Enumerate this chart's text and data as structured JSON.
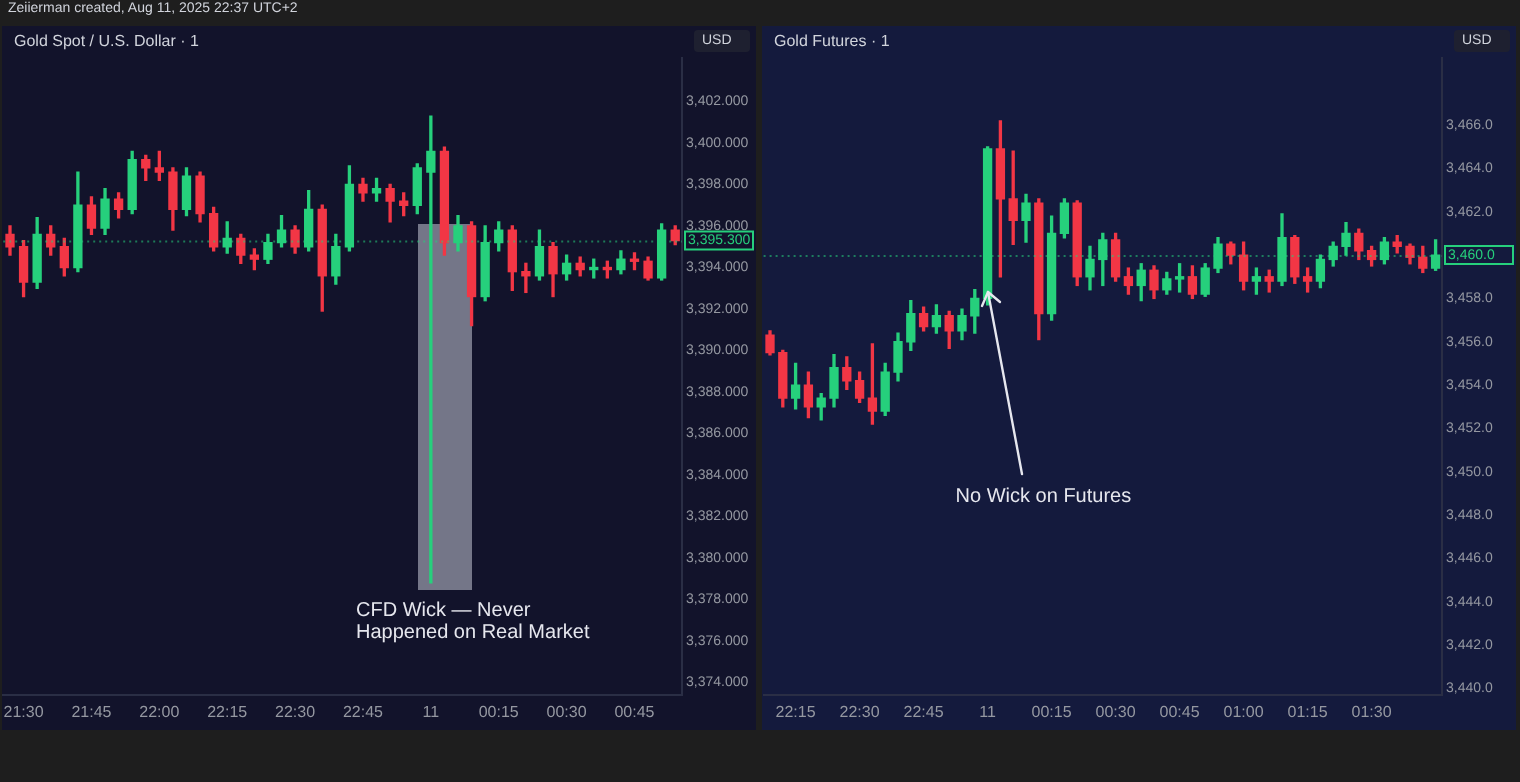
{
  "chart_data": [
    {
      "type": "candlestick",
      "title": "Gold Spot / U.S. Dollar · 1",
      "ylabel": "USD",
      "categories": [
        null,
        "21:30",
        null,
        null,
        null,
        null,
        "21:45",
        null,
        null,
        null,
        null,
        "22:00",
        null,
        null,
        null,
        null,
        "22:15",
        null,
        null,
        null,
        null,
        "22:30",
        null,
        null,
        null,
        null,
        "22:45",
        null,
        null,
        null,
        null,
        "11",
        null,
        null,
        null,
        null,
        "00:15",
        null,
        null,
        null,
        null,
        "00:30",
        null,
        null,
        null,
        null,
        "00:45",
        null,
        null,
        null
      ],
      "ohlc": [
        [
          3395.6,
          3396.0,
          3394.6,
          3395.0
        ],
        [
          3395.0,
          3395.3,
          3392.6,
          3393.3
        ],
        [
          3393.3,
          3396.4,
          3393.0,
          3395.6
        ],
        [
          3395.6,
          3396.0,
          3394.6,
          3395.0
        ],
        [
          3395.0,
          3395.4,
          3393.6,
          3394.0
        ],
        [
          3394.0,
          3398.6,
          3393.8,
          3397.0
        ],
        [
          3397.0,
          3397.4,
          3395.6,
          3395.9
        ],
        [
          3395.9,
          3397.8,
          3395.6,
          3397.3
        ],
        [
          3397.3,
          3397.6,
          3396.4,
          3396.8
        ],
        [
          3396.8,
          3399.6,
          3396.6,
          3399.2
        ],
        [
          3399.2,
          3399.4,
          3398.2,
          3398.8
        ],
        [
          3398.8,
          3399.6,
          3398.2,
          3398.6
        ],
        [
          3398.6,
          3398.8,
          3395.8,
          3396.8
        ],
        [
          3396.8,
          3398.8,
          3396.5,
          3398.4
        ],
        [
          3398.4,
          3398.6,
          3396.2,
          3396.6
        ],
        [
          3396.6,
          3396.9,
          3394.8,
          3395.0
        ],
        [
          3395.0,
          3396.2,
          3394.7,
          3395.4
        ],
        [
          3395.4,
          3395.6,
          3394.2,
          3394.6
        ],
        [
          3394.6,
          3394.9,
          3393.9,
          3394.4
        ],
        [
          3394.4,
          3395.6,
          3394.2,
          3395.2
        ],
        [
          3395.2,
          3396.5,
          3395.0,
          3395.8
        ],
        [
          3395.8,
          3396.0,
          3394.7,
          3395.0
        ],
        [
          3395.0,
          3397.7,
          3394.8,
          3396.8
        ],
        [
          3396.8,
          3397.0,
          3391.9,
          3393.6
        ],
        [
          3393.6,
          3395.6,
          3393.2,
          3395.0
        ],
        [
          3395.0,
          3398.9,
          3394.8,
          3398.0
        ],
        [
          3398.0,
          3398.3,
          3397.2,
          3397.6
        ],
        [
          3397.6,
          3398.3,
          3397.2,
          3397.8
        ],
        [
          3397.8,
          3398.0,
          3396.2,
          3397.2
        ],
        [
          3397.2,
          3397.6,
          3396.5,
          3397.0
        ],
        [
          3397.0,
          3399.0,
          3396.6,
          3398.8
        ],
        [
          3398.6,
          3401.3,
          3378.8,
          3399.6
        ],
        [
          3399.6,
          3399.8,
          3394.6,
          3395.2
        ],
        [
          3395.2,
          3396.5,
          3394.8,
          3396.0
        ],
        [
          3396.0,
          3396.2,
          3391.2,
          3392.6
        ],
        [
          3392.6,
          3396.0,
          3392.4,
          3395.2
        ],
        [
          3395.2,
          3396.2,
          3394.8,
          3395.8
        ],
        [
          3395.8,
          3396.0,
          3392.9,
          3393.8
        ],
        [
          3393.8,
          3394.2,
          3392.8,
          3393.6
        ],
        [
          3393.6,
          3395.8,
          3393.4,
          3395.0
        ],
        [
          3395.0,
          3395.2,
          3392.6,
          3393.7
        ],
        [
          3393.7,
          3394.6,
          3393.4,
          3394.2
        ],
        [
          3394.2,
          3394.5,
          3393.6,
          3393.9
        ],
        [
          3393.9,
          3394.4,
          3393.5,
          3394.0
        ],
        [
          3394.0,
          3394.3,
          3393.5,
          3393.9
        ],
        [
          3393.9,
          3394.8,
          3393.7,
          3394.4
        ],
        [
          3394.4,
          3394.7,
          3393.9,
          3394.3
        ],
        [
          3394.3,
          3394.5,
          3393.4,
          3393.5
        ],
        [
          3393.5,
          3396.1,
          3393.4,
          3395.8
        ],
        [
          3395.8,
          3396.0,
          3395.1,
          3395.3
        ]
      ],
      "colors": [
        "#f23645",
        "#f23645",
        "#26d07c",
        "#f23645",
        "#f23645",
        "#26d07c",
        "#f23645",
        "#26d07c",
        "#f23645",
        "#26d07c",
        "#f23645",
        "#f23645",
        "#f23645",
        "#26d07c",
        "#f23645",
        "#f23645",
        "#26d07c",
        "#f23645",
        "#f23645",
        "#26d07c",
        "#26d07c",
        "#f23645",
        "#26d07c",
        "#f23645",
        "#26d07c",
        "#26d07c",
        "#f23645",
        "#26d07c",
        "#f23645",
        "#f23645",
        "#26d07c",
        "#26d07c",
        "#f23645",
        "#26d07c",
        "#f23645",
        "#26d07c",
        "#26d07c",
        "#f23645",
        "#f23645",
        "#26d07c",
        "#f23645",
        "#26d07c",
        "#f23645",
        "#26d07c",
        "#f23645",
        "#26d07c",
        "#f23645",
        "#f23645",
        "#26d07c",
        "#f23645"
      ],
      "ylim": [
        3373.4,
        3404.1
      ],
      "yticks": [
        {
          "value": 3374,
          "label": "3,374.000"
        },
        {
          "value": 3376,
          "label": "3,376.000"
        },
        {
          "value": 3378,
          "label": "3,378.000"
        },
        {
          "value": 3380,
          "label": "3,380.000"
        },
        {
          "value": 3382,
          "label": "3,382.000"
        },
        {
          "value": 3384,
          "label": "3,384.000"
        },
        {
          "value": 3386,
          "label": "3,386.000"
        },
        {
          "value": 3388,
          "label": "3,388.000"
        },
        {
          "value": 3390,
          "label": "3,390.000"
        },
        {
          "value": 3392,
          "label": "3,392.000"
        },
        {
          "value": 3394,
          "label": "3,394.000"
        },
        {
          "value": 3396,
          "label": "3,396.000"
        },
        {
          "value": 3398,
          "label": "3,398.000"
        },
        {
          "value": 3400,
          "label": "3,400.000"
        },
        {
          "value": 3402,
          "label": "3,402.000"
        }
      ],
      "ref_lines": [
        {
          "axis": "y",
          "value": 3395.3,
          "label": "3,395.300",
          "color": "#26d07c"
        }
      ],
      "annotations": [
        "Zeiierman created, Aug 11, 2025 22:37 UTC+2",
        "CFD Wick — Never\nHappened on Real Market"
      ]
    },
    {
      "type": "candlestick",
      "title": "Gold Futures · 1",
      "ylabel": "USD",
      "categories": [
        null,
        null,
        "22:15",
        null,
        null,
        null,
        null,
        "22:30",
        null,
        null,
        null,
        null,
        "22:45",
        null,
        null,
        null,
        null,
        "11",
        null,
        null,
        null,
        null,
        "00:15",
        null,
        null,
        null,
        null,
        "00:30",
        null,
        null,
        null,
        null,
        "00:45",
        null,
        null,
        null,
        null,
        "01:00",
        null,
        null,
        null,
        null,
        "01:15",
        null,
        null,
        null,
        null,
        "01:30",
        null,
        null,
        null,
        null,
        null
      ],
      "ohlc": [
        [
          3456.3,
          3456.5,
          3455.4,
          3455.5
        ],
        [
          3455.5,
          3455.6,
          3453.0,
          3453.4
        ],
        [
          3453.4,
          3455.0,
          3452.9,
          3454.0
        ],
        [
          3454.0,
          3454.6,
          3452.5,
          3453.0
        ],
        [
          3453.0,
          3453.6,
          3452.4,
          3453.4
        ],
        [
          3453.4,
          3455.4,
          3453.0,
          3454.8
        ],
        [
          3454.8,
          3455.3,
          3453.8,
          3454.2
        ],
        [
          3454.2,
          3454.6,
          3453.2,
          3453.4
        ],
        [
          3453.4,
          3455.9,
          3452.2,
          3452.8
        ],
        [
          3452.8,
          3455.0,
          3452.6,
          3454.6
        ],
        [
          3454.6,
          3456.4,
          3454.2,
          3456.0
        ],
        [
          3456.0,
          3457.9,
          3455.6,
          3457.3
        ],
        [
          3457.3,
          3457.6,
          3456.5,
          3456.7
        ],
        [
          3456.7,
          3457.7,
          3456.4,
          3457.2
        ],
        [
          3457.2,
          3457.4,
          3455.7,
          3456.5
        ],
        [
          3456.5,
          3457.5,
          3456.1,
          3457.2
        ],
        [
          3457.2,
          3458.4,
          3456.4,
          3458.0
        ],
        [
          3458.0,
          3465.0,
          3457.7,
          3464.9
        ],
        [
          3464.9,
          3466.2,
          3459.0,
          3462.6
        ],
        [
          3462.6,
          3464.8,
          3460.5,
          3461.6
        ],
        [
          3461.6,
          3462.8,
          3460.6,
          3462.4
        ],
        [
          3462.4,
          3462.6,
          3456.1,
          3457.3
        ],
        [
          3457.3,
          3461.8,
          3457.0,
          3461.0
        ],
        [
          3461.0,
          3462.6,
          3460.8,
          3462.4
        ],
        [
          3462.4,
          3462.5,
          3458.6,
          3459.0
        ],
        [
          3459.0,
          3460.4,
          3458.4,
          3459.8
        ],
        [
          3459.8,
          3461.0,
          3458.6,
          3460.7
        ],
        [
          3460.7,
          3461.0,
          3458.8,
          3459.0
        ],
        [
          3459.0,
          3459.4,
          3458.2,
          3458.6
        ],
        [
          3458.6,
          3459.6,
          3457.9,
          3459.3
        ],
        [
          3459.3,
          3459.5,
          3458.0,
          3458.4
        ],
        [
          3458.4,
          3459.2,
          3458.2,
          3458.9
        ],
        [
          3458.9,
          3459.6,
          3458.3,
          3459.0
        ],
        [
          3459.0,
          3459.5,
          3458.0,
          3458.2
        ],
        [
          3458.2,
          3459.6,
          3458.1,
          3459.4
        ],
        [
          3459.4,
          3460.8,
          3459.2,
          3460.5
        ],
        [
          3460.5,
          3460.6,
          3459.6,
          3460.0
        ],
        [
          3460.0,
          3460.6,
          3458.4,
          3458.8
        ],
        [
          3458.8,
          3459.4,
          3458.2,
          3459.0
        ],
        [
          3459.0,
          3459.3,
          3458.3,
          3458.8
        ],
        [
          3458.8,
          3461.9,
          3458.6,
          3460.8
        ],
        [
          3460.8,
          3460.9,
          3458.7,
          3459.0
        ],
        [
          3459.0,
          3459.4,
          3458.3,
          3458.8
        ],
        [
          3458.8,
          3460.0,
          3458.5,
          3459.8
        ],
        [
          3459.8,
          3460.6,
          3459.5,
          3460.4
        ],
        [
          3460.4,
          3461.5,
          3460.0,
          3461.0
        ],
        [
          3461.0,
          3461.2,
          3459.8,
          3460.2
        ],
        [
          3460.2,
          3460.4,
          3459.5,
          3459.8
        ],
        [
          3459.8,
          3460.8,
          3459.6,
          3460.6
        ],
        [
          3460.6,
          3460.9,
          3460.1,
          3460.4
        ],
        [
          3460.4,
          3460.5,
          3459.6,
          3459.9
        ],
        [
          3459.9,
          3460.4,
          3459.2,
          3459.4
        ],
        [
          3459.4,
          3460.7,
          3459.3,
          3460.0
        ]
      ],
      "colors": [
        "#f23645",
        "#f23645",
        "#26d07c",
        "#f23645",
        "#26d07c",
        "#26d07c",
        "#f23645",
        "#f23645",
        "#f23645",
        "#26d07c",
        "#26d07c",
        "#26d07c",
        "#f23645",
        "#26d07c",
        "#f23645",
        "#26d07c",
        "#26d07c",
        "#26d07c",
        "#f23645",
        "#f23645",
        "#26d07c",
        "#f23645",
        "#26d07c",
        "#26d07c",
        "#f23645",
        "#26d07c",
        "#26d07c",
        "#f23645",
        "#f23645",
        "#26d07c",
        "#f23645",
        "#26d07c",
        "#26d07c",
        "#f23645",
        "#26d07c",
        "#26d07c",
        "#f23645",
        "#f23645",
        "#26d07c",
        "#f23645",
        "#26d07c",
        "#f23645",
        "#f23645",
        "#26d07c",
        "#26d07c",
        "#26d07c",
        "#f23645",
        "#f23645",
        "#26d07c",
        "#f23645",
        "#f23645",
        "#f23645",
        "#26d07c"
      ],
      "ylim": [
        3439.7,
        3469.1
      ],
      "yticks": [
        {
          "value": 3440,
          "label": "3,440.0"
        },
        {
          "value": 3442,
          "label": "3,442.0"
        },
        {
          "value": 3444,
          "label": "3,444.0"
        },
        {
          "value": 3446,
          "label": "3,446.0"
        },
        {
          "value": 3448,
          "label": "3,448.0"
        },
        {
          "value": 3450,
          "label": "3,450.0"
        },
        {
          "value": 3452,
          "label": "3,452.0"
        },
        {
          "value": 3454,
          "label": "3,454.0"
        },
        {
          "value": 3456,
          "label": "3,456.0"
        },
        {
          "value": 3458,
          "label": "3,458.0"
        },
        {
          "value": 3462,
          "label": "3,462.0"
        },
        {
          "value": 3464,
          "label": "3,464.0"
        },
        {
          "value": 3466,
          "label": "3,466.0"
        }
      ],
      "ref_lines": [
        {
          "axis": "y",
          "value": 3460.0,
          "label": "3,460.0",
          "color": "#26d07c"
        }
      ],
      "annotations": [
        {
          "text": "No Wick on Futures",
          "x": "11",
          "y": 3458.3
        }
      ]
    }
  ]
}
